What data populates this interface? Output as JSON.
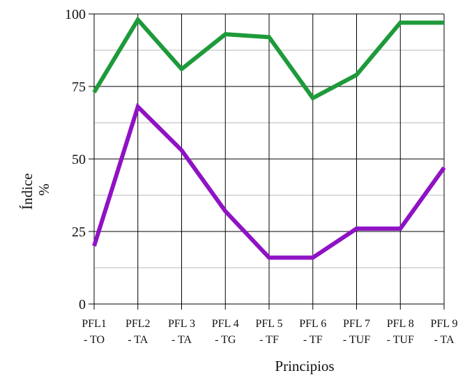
{
  "chart_data": {
    "type": "line",
    "categories": [
      "PFL1\n- TO",
      "PFL2\n- TA",
      "PFL 3\n- TA",
      "PFL 4\n- TG",
      "PFL 5\n- TF",
      "PFL 6\n- TF",
      "PFL 7\n- TUF",
      "PFL 8\n- TUF",
      "PFL 9\n- TA"
    ],
    "series": [
      {
        "name": "",
        "color": "#1e9a3a",
        "values": [
          73,
          98,
          81,
          93,
          92,
          71,
          79,
          97,
          97
        ]
      },
      {
        "name": "",
        "color": "#8f12c4",
        "values": [
          20,
          68,
          53,
          32,
          16,
          16,
          26,
          26,
          47
        ]
      }
    ],
    "ylabel_line1": "Índice",
    "ylabel_line2": "%",
    "xlabel": "Principios",
    "ylim": [
      0,
      100
    ],
    "yticks": [
      0,
      25,
      50,
      75,
      100
    ],
    "grid": true
  }
}
